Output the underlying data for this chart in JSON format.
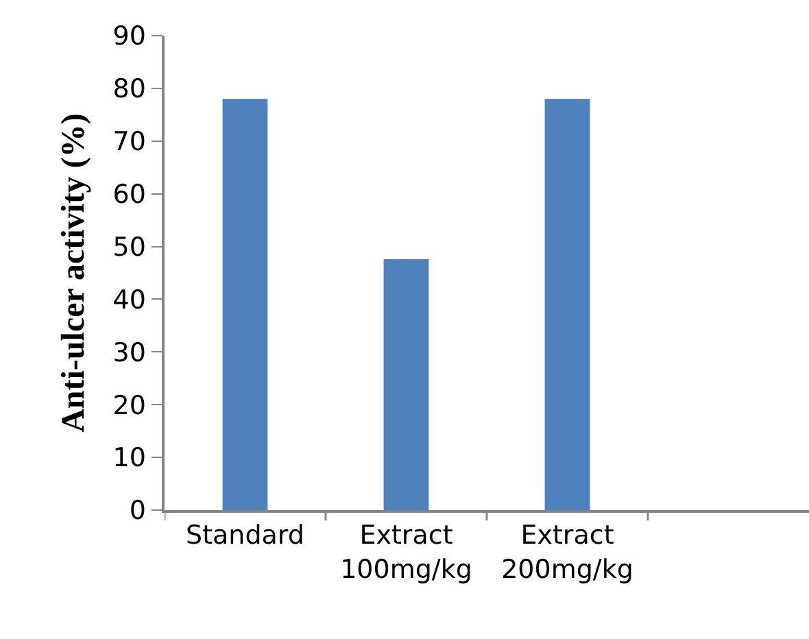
{
  "chart_data": {
    "type": "bar",
    "ylabel": "Anti-ulcer activity (%)",
    "categories": [
      "Standard",
      "Extract\n100mg/kg",
      "Extract\n200mg/kg",
      null
    ],
    "values": [
      78,
      47.6,
      78,
      null
    ],
    "color": "#4f81bd",
    "ylim": [
      0,
      90
    ],
    "yticks": [
      0,
      10,
      20,
      30,
      40,
      50,
      60,
      70,
      80,
      90
    ]
  }
}
